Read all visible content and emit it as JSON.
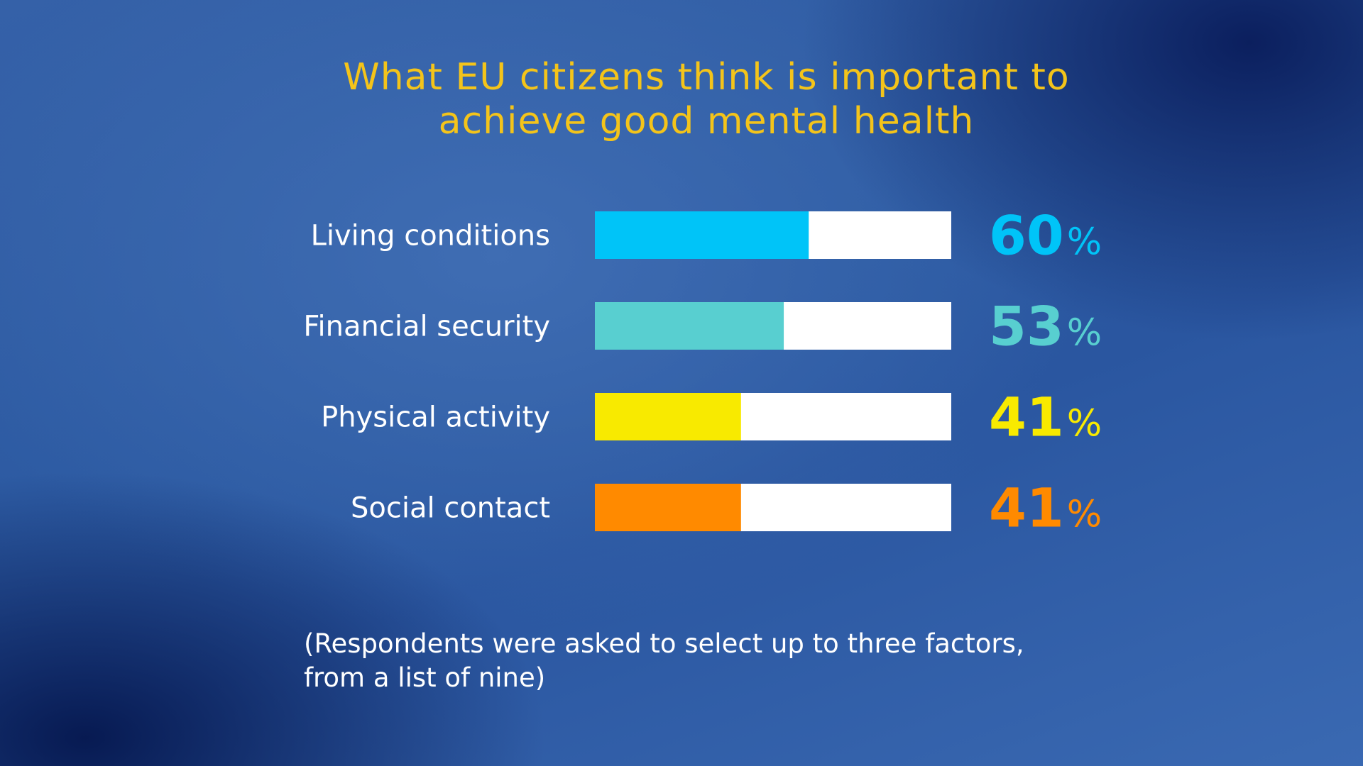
{
  "chart_data": {
    "type": "bar",
    "orientation": "horizontal",
    "title": "What EU citizens think is important to achieve good mental health",
    "title_lines": [
      "What EU citizens think is important to",
      "achieve good mental health"
    ],
    "categories": [
      "Living conditions",
      "Financial security",
      "Physical activity",
      "Social contact"
    ],
    "values": [
      60,
      53,
      41,
      41
    ],
    "value_labels": [
      "60",
      "53",
      "41",
      "41"
    ],
    "value_suffix": "%",
    "colors": [
      "#00c4f8",
      "#58cfd0",
      "#f8ea00",
      "#ff8a00"
    ],
    "track_color": "#ffffff",
    "xlim": [
      0,
      100
    ],
    "grid": false,
    "legend": "none",
    "note_lines": [
      "(Respondents were asked to select up to three factors,",
      "from a list of nine)"
    ]
  }
}
